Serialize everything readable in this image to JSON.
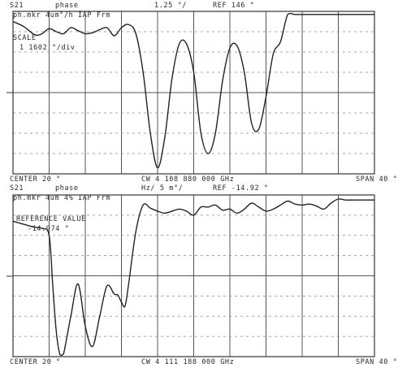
{
  "colors": {
    "trace": "#222222",
    "grid": "#555555",
    "background": "#ffffff"
  },
  "chart_data": [
    {
      "type": "line",
      "header": {
        "param": "S21",
        "format": "phase",
        "scale": "1.25 °/",
        "ref": "REF 146 °"
      },
      "marker_line": "ph.mkr 4um°/h IAP Frm",
      "annotation": {
        "label": "SCALE",
        "value": "1 1602 °/div"
      },
      "footer": {
        "center": "CENTER 20 °",
        "cw": "CW  4 108 880 000 GHz",
        "span": "SPAN 40 °"
      },
      "grid": true,
      "ylim": [
        0,
        8
      ],
      "x": [
        0,
        3,
        6,
        8,
        10,
        12,
        14,
        16,
        18,
        20,
        22,
        24,
        26,
        28,
        30,
        32,
        34,
        36,
        38,
        40,
        42,
        44,
        46,
        48,
        50,
        52,
        54,
        56,
        58,
        60,
        62,
        64,
        66,
        68,
        70,
        72,
        74,
        76,
        78,
        80,
        82,
        84,
        86,
        88,
        90,
        92,
        94,
        96,
        98,
        100
      ],
      "values": [
        7.5,
        7.25,
        6.85,
        6.9,
        7.15,
        7.0,
        6.9,
        7.2,
        7.05,
        6.9,
        6.95,
        7.1,
        7.2,
        6.8,
        7.2,
        7.35,
        6.9,
        5.0,
        2.0,
        0.3,
        1.8,
        4.7,
        6.4,
        6.4,
        5.0,
        2.0,
        1.0,
        2.0,
        4.6,
        6.2,
        6.3,
        5.0,
        2.5,
        2.2,
        3.8,
        5.9,
        6.5,
        7.85,
        7.85,
        7.85,
        7.85,
        7.85,
        7.85,
        7.85,
        7.85,
        7.85,
        7.85,
        7.85,
        7.85,
        7.85
      ]
    },
    {
      "type": "line",
      "header": {
        "param": "S21",
        "format": "phase",
        "scale": "Hz/ 5 m°/",
        "ref": "REF -14.92 °"
      },
      "marker_line": "ph.mkr 4um 4% IAP Frm",
      "annotation": {
        "label": "REFERENCE VALUE",
        "value": "-14.974 °"
      },
      "footer": {
        "center": "CENTER 20 °",
        "cw": "CW  4 111 188 000 GHz",
        "span": "SPAN 40 °"
      },
      "grid": true,
      "ylim": [
        0,
        8
      ],
      "x": [
        0,
        3,
        6,
        8,
        10,
        11,
        12,
        13,
        14,
        16,
        18,
        20,
        22,
        24,
        26,
        28,
        29,
        30,
        31,
        32,
        34,
        36,
        38,
        40,
        42,
        44,
        46,
        48,
        50,
        52,
        54,
        56,
        58,
        60,
        62,
        64,
        66,
        68,
        70,
        72,
        74,
        76,
        78,
        80,
        82,
        84,
        86,
        88,
        90,
        92,
        94,
        96,
        98,
        100
      ],
      "values": [
        6.7,
        6.55,
        6.4,
        6.35,
        6.0,
        3.5,
        1.2,
        0.1,
        0.15,
        2.0,
        3.6,
        1.5,
        0.5,
        2.0,
        3.5,
        3.1,
        3.05,
        2.7,
        2.5,
        3.6,
        6.2,
        7.5,
        7.35,
        7.2,
        7.1,
        7.2,
        7.3,
        7.2,
        7.0,
        7.4,
        7.4,
        7.5,
        7.25,
        7.3,
        7.1,
        7.3,
        7.6,
        7.4,
        7.2,
        7.3,
        7.5,
        7.7,
        7.55,
        7.5,
        7.55,
        7.45,
        7.3,
        7.6,
        7.8,
        7.75,
        7.75,
        7.75,
        7.75,
        7.75
      ]
    }
  ]
}
